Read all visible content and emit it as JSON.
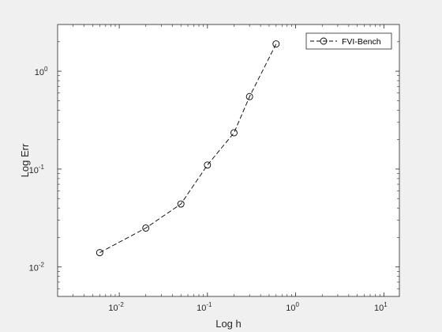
{
  "chart_data": {
    "type": "line",
    "x_scale": "log",
    "y_scale": "log",
    "xlabel": "Log h",
    "ylabel": "Log Err",
    "xlim": [
      0.002,
      15
    ],
    "ylim": [
      0.005,
      3
    ],
    "x_ticks": [
      {
        "base": "10",
        "exp": "-2",
        "value": 0.01
      },
      {
        "base": "10",
        "exp": "-1",
        "value": 0.1
      },
      {
        "base": "10",
        "exp": "0",
        "value": 1
      },
      {
        "base": "10",
        "exp": "1",
        "value": 10
      }
    ],
    "y_ticks": [
      {
        "base": "10",
        "exp": "-2",
        "value": 0.01
      },
      {
        "base": "10",
        "exp": "-1",
        "value": 0.1
      },
      {
        "base": "10",
        "exp": "0",
        "value": 1
      }
    ],
    "legend": {
      "position": "top-right"
    },
    "series": [
      {
        "name": "FVI-Bench",
        "line_style": "dashed",
        "marker": "circle",
        "color": "#000000",
        "x": [
          0.006,
          0.02,
          0.05,
          0.1,
          0.2,
          0.3,
          0.6
        ],
        "y": [
          0.014,
          0.025,
          0.044,
          0.11,
          0.235,
          0.55,
          1.9
        ]
      }
    ]
  }
}
